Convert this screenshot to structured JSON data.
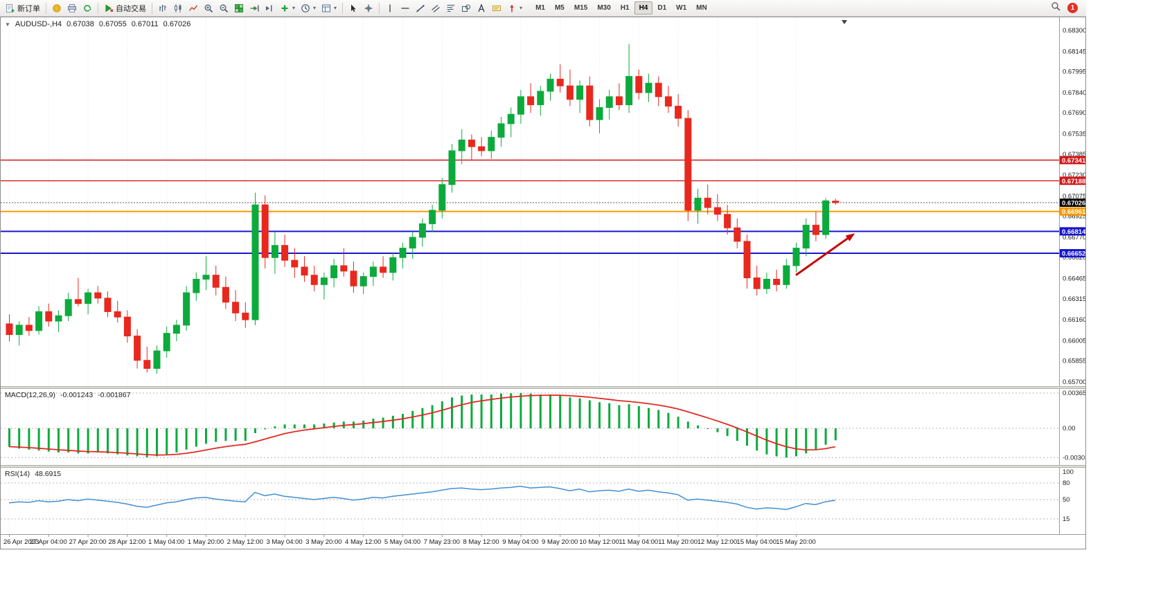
{
  "toolbar": {
    "items": [
      {
        "type": "button",
        "name": "new-order-button",
        "icon": "new-order-icon",
        "label": "新订单"
      },
      {
        "type": "sep"
      },
      {
        "type": "button",
        "name": "gold-coin-button",
        "icon": "coin-icon"
      },
      {
        "type": "button",
        "name": "printer-button",
        "icon": "printer-icon"
      },
      {
        "type": "button",
        "name": "refresh-button",
        "icon": "refresh-icon"
      },
      {
        "type": "sep"
      },
      {
        "type": "button",
        "name": "algo-trading-button",
        "icon": "algo-trading-icon",
        "label": "自动交易"
      },
      {
        "type": "sep"
      },
      {
        "type": "button",
        "name": "bar-chart-button",
        "icon": "bar-chart-icon"
      },
      {
        "type": "button",
        "name": "candlestick-chart-button",
        "icon": "candlestick-icon"
      },
      {
        "type": "button",
        "name": "line-chart-button",
        "icon": "line-chart-icon"
      },
      {
        "type": "button",
        "name": "zoom-in-button",
        "icon": "magnifier-plus-icon"
      },
      {
        "type": "button",
        "name": "zoom-out-button",
        "icon": "magnifier-minus-icon"
      },
      {
        "type": "button",
        "name": "tile-windows-button",
        "icon": "tile-windows-icon"
      },
      {
        "type": "button",
        "name": "auto-scroll-button",
        "icon": "auto-scroll-icon"
      },
      {
        "type": "button",
        "name": "chart-shift-button",
        "icon": "chart-shift-icon"
      },
      {
        "type": "button",
        "name": "indicators-button",
        "icon": "indicators-icon",
        "dropdown": true
      },
      {
        "type": "button",
        "name": "periods-button",
        "icon": "clock-icon",
        "dropdown": true
      },
      {
        "type": "button",
        "name": "templates-button",
        "icon": "template-icon",
        "dropdown": true
      },
      {
        "type": "sep"
      },
      {
        "type": "button",
        "name": "cursor-button",
        "icon": "cursor-icon"
      },
      {
        "type": "button",
        "name": "crosshair-button",
        "icon": "crosshair-icon"
      },
      {
        "type": "sep"
      },
      {
        "type": "button",
        "name": "vertical-line-button",
        "icon": "vertical-line-icon"
      },
      {
        "type": "button",
        "name": "horizontal-line-button",
        "icon": "horizontal-line-icon"
      },
      {
        "type": "button",
        "name": "trendline-button",
        "icon": "trendline-icon"
      },
      {
        "type": "button",
        "name": "channel-button",
        "icon": "channel-icon"
      },
      {
        "type": "button",
        "name": "fibonacci-button",
        "icon": "fibonacci-icon"
      },
      {
        "type": "button",
        "name": "shapes-button",
        "icon": "shapes-icon"
      },
      {
        "type": "button",
        "name": "text-button",
        "icon": "text-icon"
      },
      {
        "type": "button",
        "name": "text-label-button",
        "icon": "text-label-icon"
      },
      {
        "type": "button",
        "name": "arrow-objects-button",
        "icon": "arrow-objects-icon",
        "dropdown": true
      }
    ],
    "timeframes": {
      "options": [
        "M1",
        "M5",
        "M15",
        "M30",
        "H1",
        "H4",
        "D1",
        "W1",
        "MN"
      ],
      "active": "H4"
    },
    "notification_count": "1"
  },
  "chart": {
    "symbol_period": "AUDUSD-,H4",
    "open": "0.67038",
    "high": "0.67055",
    "low": "0.67011",
    "close": "0.67026"
  },
  "macd": {
    "title": "MACD(12,26,9)",
    "value_main": "-0.001243",
    "value_signal": "-0.001867",
    "axis_labels": [
      "0.003655",
      "0.00",
      "-0.00303"
    ],
    "axis_values": [
      0.003655,
      0,
      -0.00303
    ]
  },
  "rsi": {
    "title": "RSI(14)",
    "value": "48.6915",
    "axis_labels": [
      "100",
      "80",
      "50",
      "15"
    ],
    "axis_values": [
      100,
      80,
      50,
      15
    ],
    "level_values": [
      80,
      50,
      15
    ]
  },
  "colors": {
    "bull": "#0caa3c",
    "bear": "#e8281e",
    "macd_hist": "#0caa3c",
    "macd_signal": "#e02a20",
    "rsi_line": "#3f8fd2",
    "grid": "#e9e9e9",
    "axis_text": "#1a1a1a",
    "current_price": "#000000",
    "arrow": "#c80000"
  },
  "chart_data": {
    "type": "candlestick",
    "symbol": "AUDUSD-",
    "period": "H4",
    "price_axis": {
      "labels": [
        "0.68300",
        "0.68145",
        "0.67995",
        "0.67840",
        "0.67690",
        "0.67535",
        "0.67385",
        "0.67230",
        "0.67075",
        "0.66925",
        "0.66770",
        "0.66620",
        "0.66465",
        "0.66315",
        "0.66160",
        "0.66005",
        "0.65855",
        "0.65700"
      ]
    },
    "time_axis": {
      "labels": [
        "26 Apr 2023",
        "27 Apr 04:00",
        "27 Apr 20:00",
        "28 Apr 12:00",
        "1 May 04:00",
        "1 May 20:00",
        "2 May 12:00",
        "3 May 04:00",
        "3 May 20:00",
        "4 May 12:00",
        "5 May 04:00",
        "7 May 23:00",
        "8 May 12:00",
        "9 May 04:00",
        "9 May 20:00",
        "10 May 12:00",
        "11 May 04:00",
        "11 May 20:00",
        "12 May 12:00",
        "15 May 04:00",
        "15 May 20:00"
      ]
    },
    "levels": [
      {
        "label": "0.67341",
        "price": 0.67341,
        "color": "#d21a1a",
        "width": 1.4
      },
      {
        "label": "0.67188",
        "price": 0.67188,
        "color": "#d21a1a",
        "width": 1.4
      },
      {
        "label": "0.66961",
        "price": 0.66961,
        "color": "#f59a00",
        "width": 2
      },
      {
        "label": "0.66814",
        "price": 0.66814,
        "color": "#1515cd",
        "width": 2
      },
      {
        "label": "0.66652",
        "price": 0.66652,
        "color": "#1515cd",
        "width": 2
      }
    ],
    "current_price": {
      "label": "0.67026",
      "price": 0.67026
    },
    "annotations": [
      {
        "type": "arrow",
        "from_index": 80,
        "from_price": 0.6649,
        "to_index": 86,
        "to_price": 0.668
      }
    ],
    "candles": [
      [
        0.6613,
        0.662,
        0.66,
        0.6605
      ],
      [
        0.6605,
        0.6615,
        0.6597,
        0.6612
      ],
      [
        0.6612,
        0.6618,
        0.6604,
        0.6608
      ],
      [
        0.6608,
        0.6626,
        0.6605,
        0.6622
      ],
      [
        0.6622,
        0.6628,
        0.6611,
        0.6615
      ],
      [
        0.6615,
        0.6623,
        0.6607,
        0.6619
      ],
      [
        0.6619,
        0.6636,
        0.6615,
        0.6631
      ],
      [
        0.6631,
        0.6647,
        0.6626,
        0.6628
      ],
      [
        0.6628,
        0.6639,
        0.662,
        0.6636
      ],
      [
        0.6636,
        0.6641,
        0.6628,
        0.6632
      ],
      [
        0.6632,
        0.6637,
        0.6618,
        0.6622
      ],
      [
        0.6622,
        0.663,
        0.6614,
        0.6618
      ],
      [
        0.6618,
        0.6623,
        0.6599,
        0.6604
      ],
      [
        0.6604,
        0.6609,
        0.658,
        0.6586
      ],
      [
        0.6586,
        0.6596,
        0.6577,
        0.658
      ],
      [
        0.658,
        0.6597,
        0.6576,
        0.6593
      ],
      [
        0.6593,
        0.6611,
        0.6588,
        0.6606
      ],
      [
        0.6606,
        0.6616,
        0.66,
        0.6612
      ],
      [
        0.6612,
        0.6641,
        0.6608,
        0.6636
      ],
      [
        0.6636,
        0.6651,
        0.663,
        0.6646
      ],
      [
        0.6646,
        0.6663,
        0.6638,
        0.6649
      ],
      [
        0.6649,
        0.6656,
        0.6634,
        0.664
      ],
      [
        0.664,
        0.6648,
        0.6624,
        0.6629
      ],
      [
        0.6629,
        0.6638,
        0.6615,
        0.6621
      ],
      [
        0.6621,
        0.6629,
        0.661,
        0.6616
      ],
      [
        0.6616,
        0.671,
        0.6612,
        0.6701
      ],
      [
        0.6701,
        0.6708,
        0.6654,
        0.6662
      ],
      [
        0.6662,
        0.6681,
        0.665,
        0.6671
      ],
      [
        0.6671,
        0.6679,
        0.6655,
        0.666
      ],
      [
        0.666,
        0.6669,
        0.6647,
        0.6655
      ],
      [
        0.6655,
        0.6663,
        0.6644,
        0.6649
      ],
      [
        0.6649,
        0.6656,
        0.6637,
        0.6642
      ],
      [
        0.6642,
        0.6651,
        0.6631,
        0.6647
      ],
      [
        0.6647,
        0.6661,
        0.664,
        0.6656
      ],
      [
        0.6656,
        0.6669,
        0.6648,
        0.6652
      ],
      [
        0.6652,
        0.6659,
        0.6636,
        0.6641
      ],
      [
        0.6641,
        0.6651,
        0.6635,
        0.6648
      ],
      [
        0.6648,
        0.6659,
        0.6641,
        0.6655
      ],
      [
        0.6655,
        0.6663,
        0.6647,
        0.6651
      ],
      [
        0.6651,
        0.6666,
        0.6645,
        0.6662
      ],
      [
        0.6662,
        0.6673,
        0.6654,
        0.6669
      ],
      [
        0.6669,
        0.6681,
        0.6661,
        0.6677
      ],
      [
        0.6677,
        0.6691,
        0.667,
        0.6687
      ],
      [
        0.6687,
        0.6701,
        0.6681,
        0.6697
      ],
      [
        0.6697,
        0.6721,
        0.6691,
        0.6716
      ],
      [
        0.6716,
        0.6746,
        0.671,
        0.6741
      ],
      [
        0.6741,
        0.6757,
        0.6731,
        0.6749
      ],
      [
        0.6749,
        0.6753,
        0.6734,
        0.6744
      ],
      [
        0.6744,
        0.6751,
        0.6737,
        0.6741
      ],
      [
        0.6741,
        0.6756,
        0.6735,
        0.6751
      ],
      [
        0.6751,
        0.6766,
        0.6744,
        0.6761
      ],
      [
        0.6761,
        0.6773,
        0.6751,
        0.6768
      ],
      [
        0.6768,
        0.6786,
        0.6761,
        0.6781
      ],
      [
        0.6781,
        0.6791,
        0.6769,
        0.6775
      ],
      [
        0.6775,
        0.6789,
        0.6767,
        0.6785
      ],
      [
        0.6785,
        0.6798,
        0.6778,
        0.6794
      ],
      [
        0.6794,
        0.6805,
        0.6784,
        0.6789
      ],
      [
        0.6789,
        0.6801,
        0.6774,
        0.6779
      ],
      [
        0.6779,
        0.6793,
        0.6769,
        0.6789
      ],
      [
        0.6789,
        0.6796,
        0.6759,
        0.6764
      ],
      [
        0.6764,
        0.6779,
        0.6754,
        0.6773
      ],
      [
        0.6773,
        0.6786,
        0.6764,
        0.6781
      ],
      [
        0.6781,
        0.6791,
        0.6771,
        0.6775
      ],
      [
        0.6775,
        0.682,
        0.6769,
        0.6796
      ],
      [
        0.6796,
        0.6801,
        0.6779,
        0.6784
      ],
      [
        0.6784,
        0.6798,
        0.6777,
        0.6791
      ],
      [
        0.6791,
        0.6796,
        0.6774,
        0.6781
      ],
      [
        0.6781,
        0.6789,
        0.6769,
        0.6774
      ],
      [
        0.6774,
        0.6783,
        0.6759,
        0.6765
      ],
      [
        0.6765,
        0.6771,
        0.6689,
        0.6697
      ],
      [
        0.6697,
        0.6713,
        0.6687,
        0.6706
      ],
      [
        0.6706,
        0.6716,
        0.6694,
        0.6699
      ],
      [
        0.6699,
        0.6709,
        0.6689,
        0.6694
      ],
      [
        0.6694,
        0.6701,
        0.6679,
        0.6684
      ],
      [
        0.6684,
        0.6691,
        0.6669,
        0.6674
      ],
      [
        0.6674,
        0.6679,
        0.6639,
        0.6647
      ],
      [
        0.6647,
        0.6656,
        0.6634,
        0.6639
      ],
      [
        0.6639,
        0.6651,
        0.6635,
        0.6646
      ],
      [
        0.6646,
        0.6653,
        0.6637,
        0.6642
      ],
      [
        0.6642,
        0.6661,
        0.6639,
        0.6656
      ],
      [
        0.6656,
        0.6673,
        0.6651,
        0.6669
      ],
      [
        0.6669,
        0.6691,
        0.6663,
        0.6686
      ],
      [
        0.6686,
        0.6696,
        0.6674,
        0.6679
      ],
      [
        0.6679,
        0.6706,
        0.6676,
        0.6704
      ],
      [
        0.67038,
        0.67055,
        0.67011,
        0.67026
      ]
    ],
    "macd_histogram": [
      -0.0019,
      -0.0021,
      -0.0022,
      -0.0023,
      -0.0024,
      -0.0025,
      -0.0025,
      -0.0026,
      -0.0026,
      -0.0025,
      -0.0026,
      -0.0027,
      -0.0028,
      -0.0029,
      -0.003,
      -0.0029,
      -0.0027,
      -0.0025,
      -0.0022,
      -0.0019,
      -0.0016,
      -0.0014,
      -0.0013,
      -0.0013,
      -0.0013,
      -0.0005,
      -0.0001,
      0.0002,
      0.0004,
      0.0004,
      0.0004,
      0.0004,
      0.0005,
      0.0006,
      0.0007,
      0.0007,
      0.0008,
      0.001,
      0.0011,
      0.0013,
      0.0015,
      0.0018,
      0.0021,
      0.0024,
      0.0028,
      0.0032,
      0.0034,
      0.0035,
      0.0035,
      0.0035,
      0.0036,
      0.00362,
      0.003655,
      0.0036,
      0.0035,
      0.0035,
      0.0034,
      0.0032,
      0.0031,
      0.0029,
      0.0027,
      0.0026,
      0.0024,
      0.0025,
      0.0023,
      0.0021,
      0.0019,
      0.0016,
      0.0012,
      0.0007,
      0.0003,
      0.0,
      -0.0004,
      -0.0008,
      -0.0013,
      -0.0018,
      -0.0023,
      -0.0027,
      -0.0029,
      -0.00303,
      -0.0029,
      -0.0026,
      -0.0022,
      -0.0017,
      -0.001243
    ],
    "rsi_values": [
      44,
      46,
      45,
      48,
      46,
      47,
      50,
      48,
      51,
      49,
      47,
      45,
      42,
      38,
      36,
      40,
      44,
      46,
      50,
      53,
      54,
      51,
      49,
      47,
      46,
      63,
      57,
      60,
      56,
      54,
      52,
      50,
      52,
      54,
      52,
      49,
      51,
      54,
      53,
      56,
      58,
      60,
      62,
      64,
      67,
      70,
      71,
      69,
      68,
      69,
      71,
      72,
      74,
      71,
      72,
      73,
      70,
      66,
      69,
      64,
      66,
      67,
      65,
      69,
      65,
      67,
      64,
      62,
      59,
      49,
      51,
      49,
      47,
      45,
      42,
      36,
      33,
      35,
      34,
      32,
      37,
      43,
      41,
      46,
      48.69
    ]
  }
}
